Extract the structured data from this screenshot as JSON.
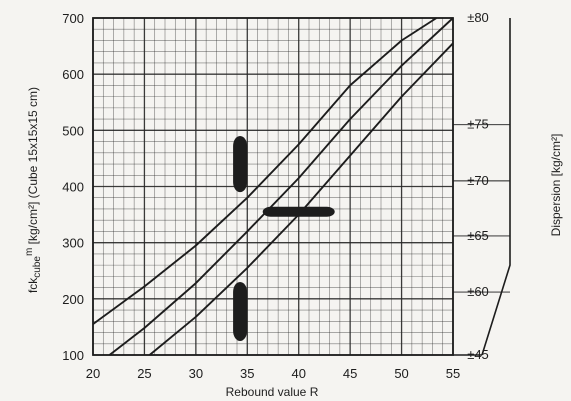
{
  "chart_data": {
    "type": "line",
    "xlabel": "Rebound value R",
    "ylabel": "fck_cube^m [kg/cm²] (Cube 15x15x15 cm)",
    "ylabel_parts": {
      "a": "fck",
      "b": "cube",
      "c": "m",
      "d": " [kg/cm²] (Cube 15x15x15 cm)"
    },
    "y2label": "Dispersion [kg/cm²]",
    "xlim": [
      20,
      55
    ],
    "ylim": [
      100,
      700
    ],
    "x_ticks": [
      "20",
      "25",
      "30",
      "35",
      "40",
      "45",
      "50",
      "55"
    ],
    "y_ticks": [
      "100",
      "200",
      "300",
      "400",
      "500",
      "600",
      "700"
    ],
    "dispersion_labels": [
      {
        "text": "±80",
        "y": 700
      },
      {
        "text": "±75",
        "y": 510
      },
      {
        "text": "±70",
        "y": 410
      },
      {
        "text": "±65",
        "y": 312
      },
      {
        "text": "±60",
        "y": 212
      },
      {
        "text": "±45",
        "y": 100
      }
    ],
    "grid": true,
    "series": [
      {
        "x": [
          20,
          25,
          30,
          35,
          40,
          45,
          50,
          53.4
        ],
        "y": [
          155,
          222,
          295,
          380,
          475,
          580,
          660,
          700
        ]
      },
      {
        "x": [
          21.6,
          25,
          30,
          35,
          40,
          45,
          50,
          55
        ],
        "y": [
          100,
          148,
          228,
          320,
          415,
          520,
          615,
          700
        ]
      },
      {
        "x": [
          25.5,
          30,
          35,
          40,
          45,
          50,
          55
        ],
        "y": [
          100,
          168,
          255,
          350,
          455,
          560,
          655
        ]
      }
    ],
    "markers": [
      {
        "orientation": "vertical",
        "x": 34.3,
        "y_range": [
          390,
          490
        ]
      },
      {
        "orientation": "horizontal",
        "y": 355,
        "x_range": [
          36.5,
          43.5
        ]
      },
      {
        "orientation": "vertical",
        "x": 34.3,
        "y_range": [
          125,
          230
        ]
      }
    ]
  },
  "colors": {
    "ink": "#1d1d1d",
    "paper": "#f5f4f1",
    "grid": "#262626",
    "pencil": "#2a3c9a"
  }
}
